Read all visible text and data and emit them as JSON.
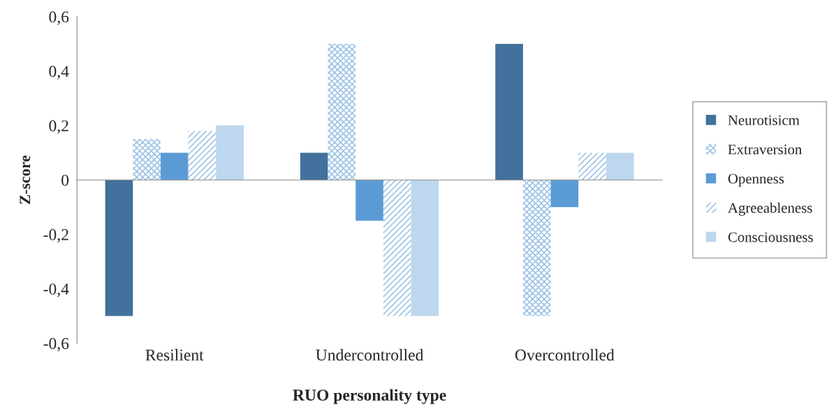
{
  "chart_data": {
    "type": "bar",
    "xlabel": "RUO personality type",
    "ylabel": "Z-score",
    "categories": [
      "Resilient",
      "Undercontrolled",
      "Overcontrolled"
    ],
    "series": [
      {
        "name": "Neurotisicm",
        "color": "#41719c",
        "values": [
          -0.5,
          0.1,
          0.5
        ]
      },
      {
        "name": "Extraversion",
        "color": "#9dc3e6",
        "values": [
          0.15,
          0.5,
          -0.5
        ]
      },
      {
        "name": "Openness",
        "color": "#5b9bd5",
        "values": [
          0.1,
          -0.15,
          -0.1
        ]
      },
      {
        "name": "Agreeableness",
        "color": "#9dc3e6",
        "values": [
          0.18,
          -0.5,
          0.1
        ]
      },
      {
        "name": "Consciousness",
        "color": "#bdd7ee",
        "values": [
          0.2,
          -0.5,
          0.1
        ]
      }
    ],
    "ylim": [
      -0.6,
      0.6
    ],
    "yticks": [
      {
        "value": -0.6,
        "label": "-0,6"
      },
      {
        "value": -0.4,
        "label": "-0,4"
      },
      {
        "value": -0.2,
        "label": "-0,2"
      },
      0,
      {
        "value": 0.2,
        "label": "0,2"
      },
      {
        "value": 0.4,
        "label": "0,4"
      },
      {
        "value": 0.6,
        "label": "0,6"
      }
    ],
    "legend": "right"
  }
}
